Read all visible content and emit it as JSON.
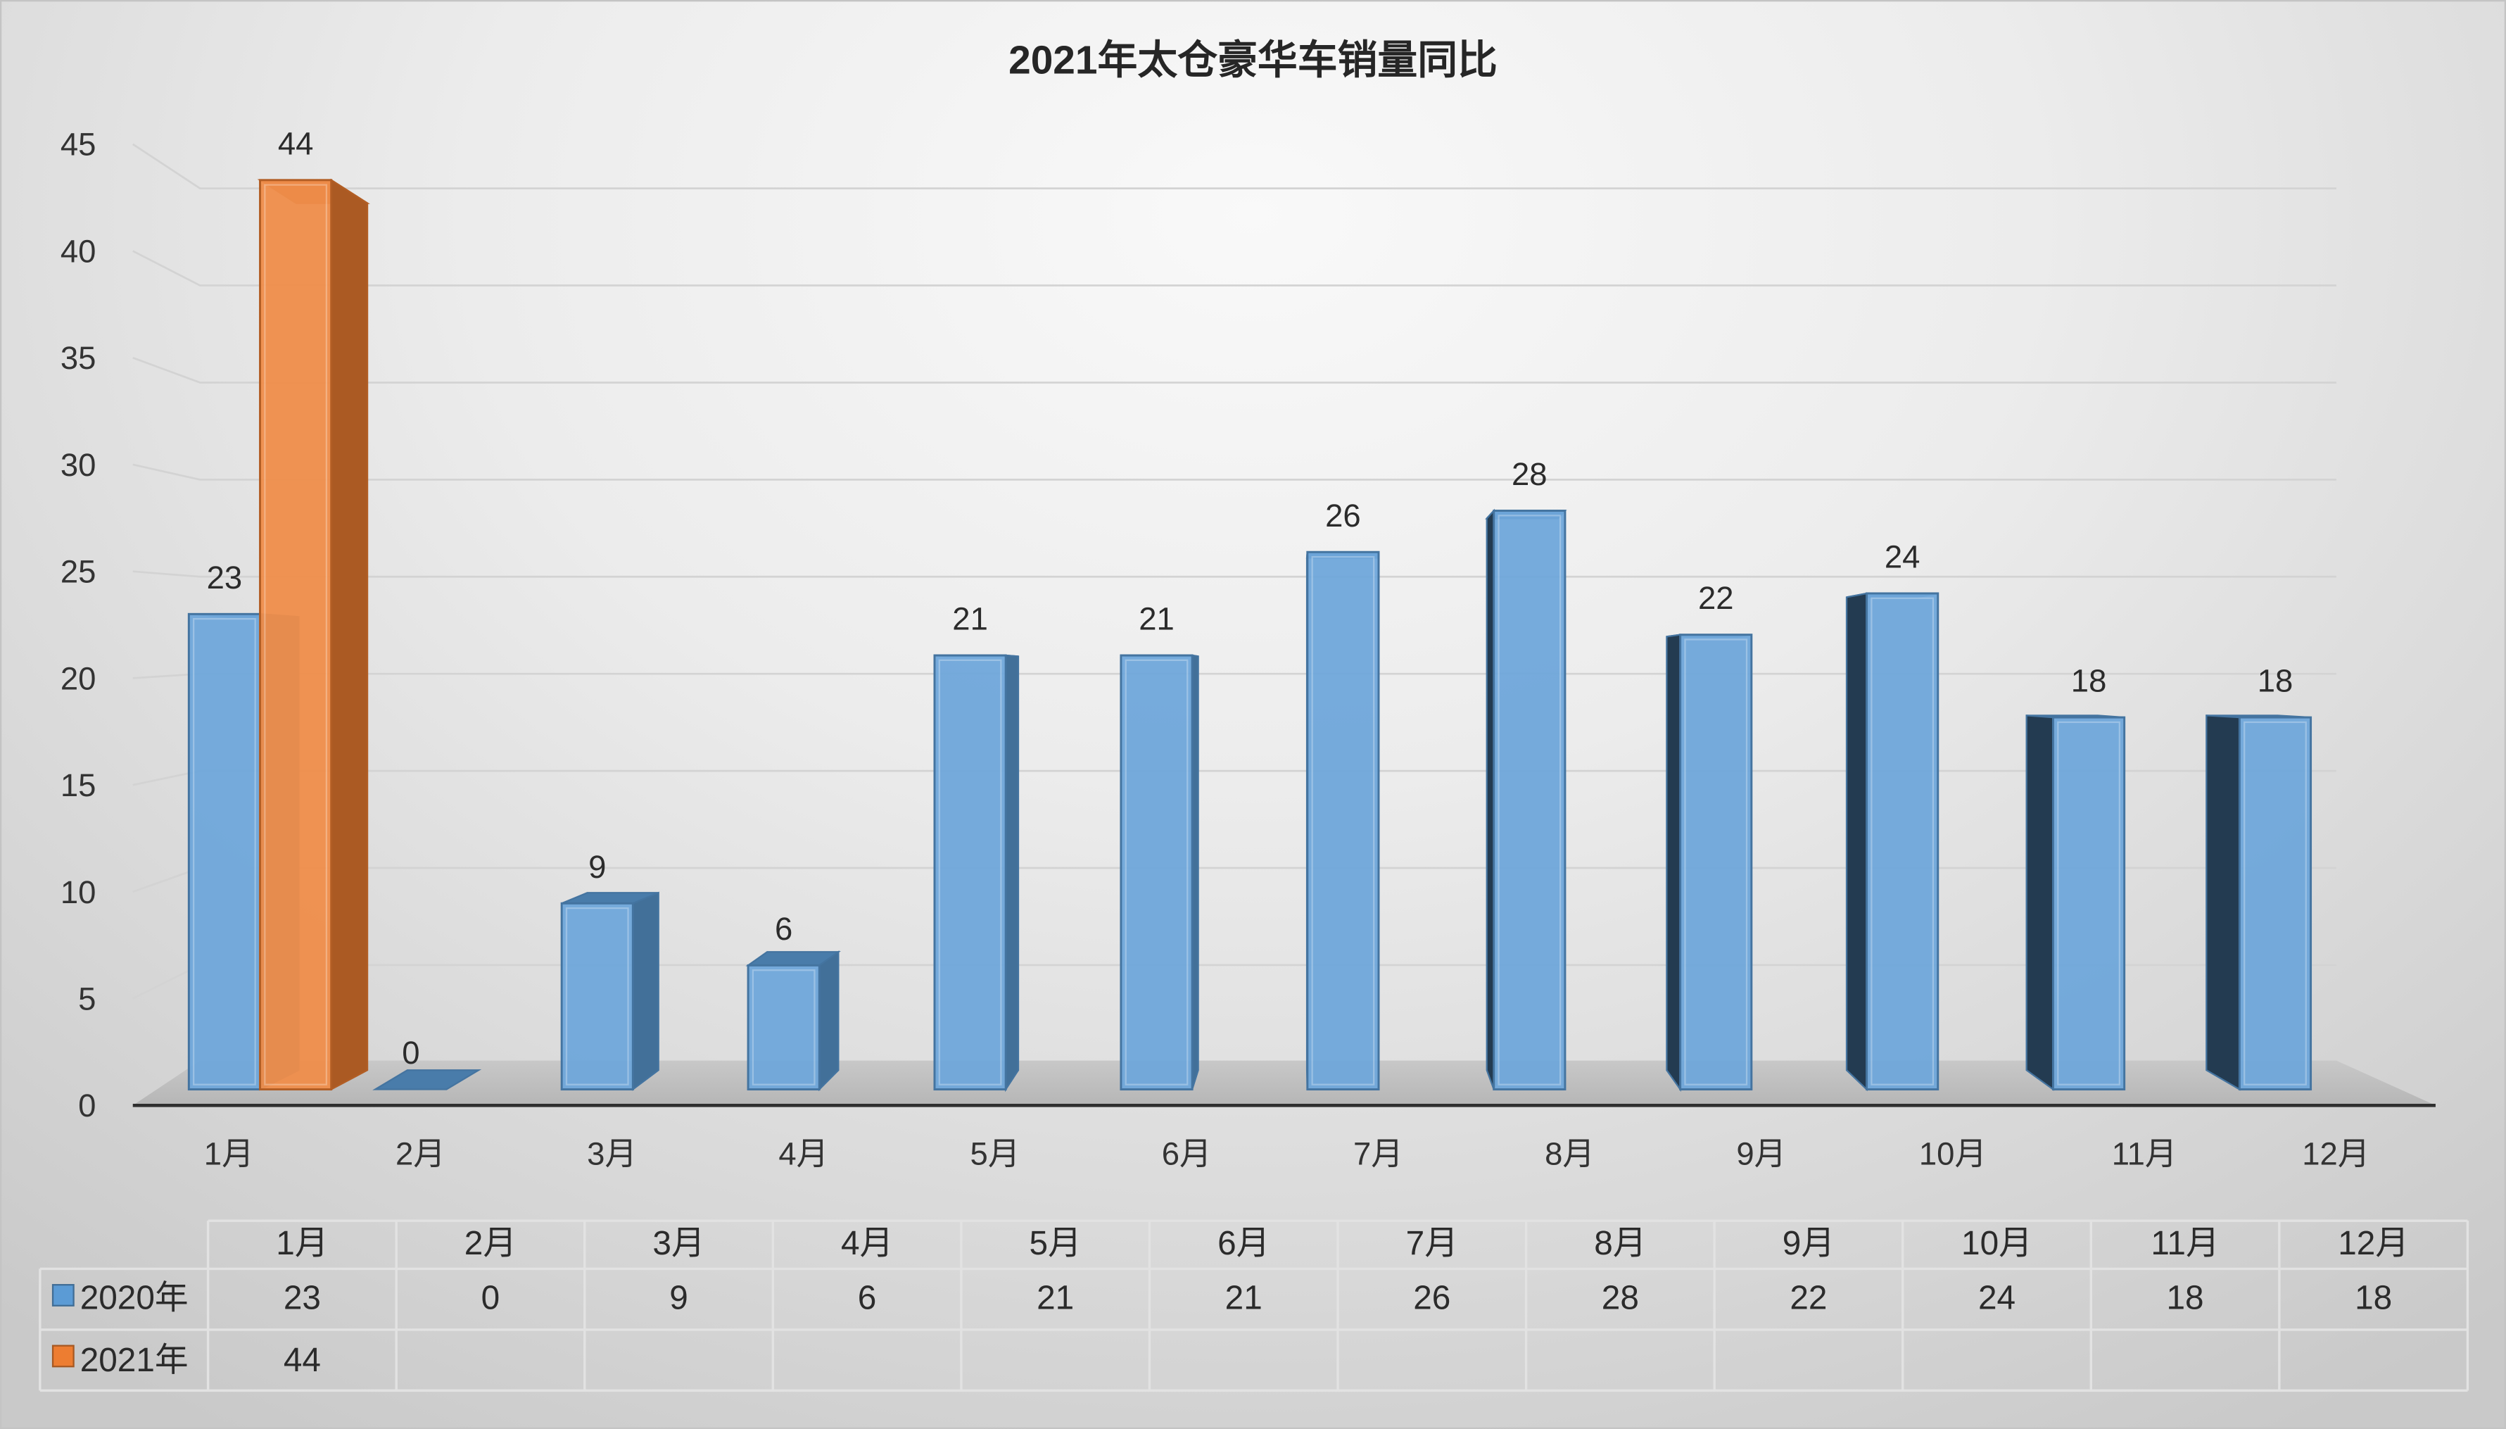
{
  "chart_data": {
    "type": "bar",
    "3d": true,
    "title": "2021年太仓豪华车销量同比",
    "categories": [
      "1月",
      "2月",
      "3月",
      "4月",
      "5月",
      "6月",
      "7月",
      "8月",
      "9月",
      "10月",
      "11月",
      "12月"
    ],
    "series": [
      {
        "name": "2020年",
        "color": "#5B9BD5",
        "values": [
          23,
          0,
          9,
          6,
          21,
          21,
          26,
          28,
          22,
          24,
          18,
          18
        ]
      },
      {
        "name": "2021年",
        "color": "#ED7D31",
        "values": [
          44,
          null,
          null,
          null,
          null,
          null,
          null,
          null,
          null,
          null,
          null,
          null
        ]
      }
    ],
    "ylim": [
      0,
      45
    ],
    "yticks": [
      0,
      5,
      10,
      15,
      20,
      25,
      30,
      35,
      40,
      45
    ],
    "grid": true,
    "data_labels": true,
    "data_table": true,
    "legend": "bottom"
  }
}
